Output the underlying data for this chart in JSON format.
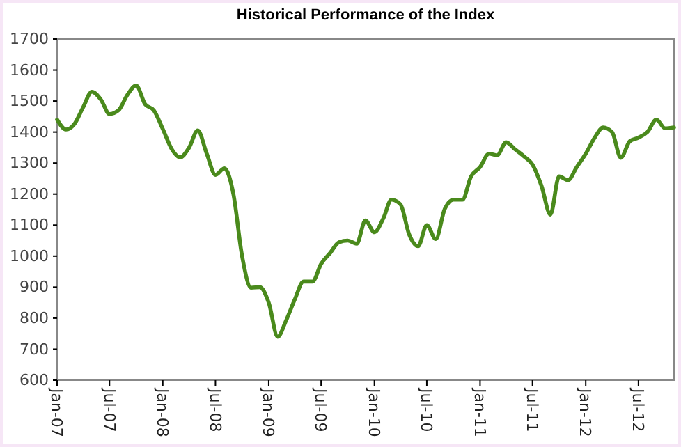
{
  "chart_data": {
    "type": "line",
    "title": "Historical Performance of the Index",
    "x": [
      "2007-01",
      "2007-02",
      "2007-03",
      "2007-04",
      "2007-05",
      "2007-06",
      "2007-07",
      "2007-08",
      "2007-09",
      "2007-10",
      "2007-11",
      "2007-12",
      "2008-01",
      "2008-02",
      "2008-03",
      "2008-04",
      "2008-05",
      "2008-06",
      "2008-07",
      "2008-08",
      "2008-09",
      "2008-10",
      "2008-11",
      "2008-12",
      "2009-01",
      "2009-02",
      "2009-03",
      "2009-04",
      "2009-05",
      "2009-06",
      "2009-07",
      "2009-08",
      "2009-09",
      "2009-10",
      "2009-11",
      "2009-12",
      "2010-01",
      "2010-02",
      "2010-03",
      "2010-04",
      "2010-05",
      "2010-06",
      "2010-07",
      "2010-08",
      "2010-09",
      "2010-10",
      "2010-11",
      "2010-12",
      "2011-01",
      "2011-02",
      "2011-03",
      "2011-04",
      "2011-05",
      "2011-06",
      "2011-07",
      "2011-08",
      "2011-09",
      "2011-10",
      "2011-11",
      "2011-12",
      "2012-01",
      "2012-02",
      "2012-03",
      "2012-04",
      "2012-05",
      "2012-06",
      "2012-07",
      "2012-08",
      "2012-09",
      "2012-10",
      "2012-11"
    ],
    "series": [
      {
        "color": "#4a8a1c",
        "values": [
          1440,
          1408,
          1425,
          1480,
          1530,
          1505,
          1458,
          1470,
          1520,
          1550,
          1490,
          1470,
          1410,
          1345,
          1318,
          1350,
          1405,
          1330,
          1262,
          1283,
          1200,
          1000,
          898,
          900,
          850,
          740,
          790,
          860,
          918,
          918,
          975,
          1010,
          1045,
          1050,
          1040,
          1115,
          1077,
          1122,
          1182,
          1167,
          1070,
          1032,
          1100,
          1055,
          1152,
          1182,
          1182,
          1257,
          1287,
          1330,
          1325,
          1367,
          1345,
          1322,
          1295,
          1227,
          1134,
          1257,
          1245,
          1287,
          1330,
          1382,
          1415,
          1400,
          1317,
          1370,
          1382,
          1400,
          1440,
          1412,
          1415
        ]
      }
    ],
    "xlim": [
      "2007-01",
      "2012-11"
    ],
    "xticks": [
      {
        "value": "2007-01",
        "label": "Jan-07"
      },
      {
        "value": "2007-07",
        "label": "Jul-07"
      },
      {
        "value": "2008-01",
        "label": "Jan-08"
      },
      {
        "value": "2008-07",
        "label": "Jul-08"
      },
      {
        "value": "2009-01",
        "label": "Jan-09"
      },
      {
        "value": "2009-07",
        "label": "Jul-09"
      },
      {
        "value": "2010-01",
        "label": "Jan-10"
      },
      {
        "value": "2010-07",
        "label": "Jul-10"
      },
      {
        "value": "2011-01",
        "label": "Jan-11"
      },
      {
        "value": "2011-07",
        "label": "Jul-11"
      },
      {
        "value": "2012-01",
        "label": "Jan-12"
      },
      {
        "value": "2012-07",
        "label": "Jul-12"
      }
    ],
    "ylim": [
      600,
      1700
    ],
    "yticks": [
      600,
      700,
      800,
      900,
      1000,
      1100,
      1200,
      1300,
      1400,
      1500,
      1600,
      1700
    ],
    "grid": false,
    "marker": "none",
    "line_style": "solid"
  }
}
